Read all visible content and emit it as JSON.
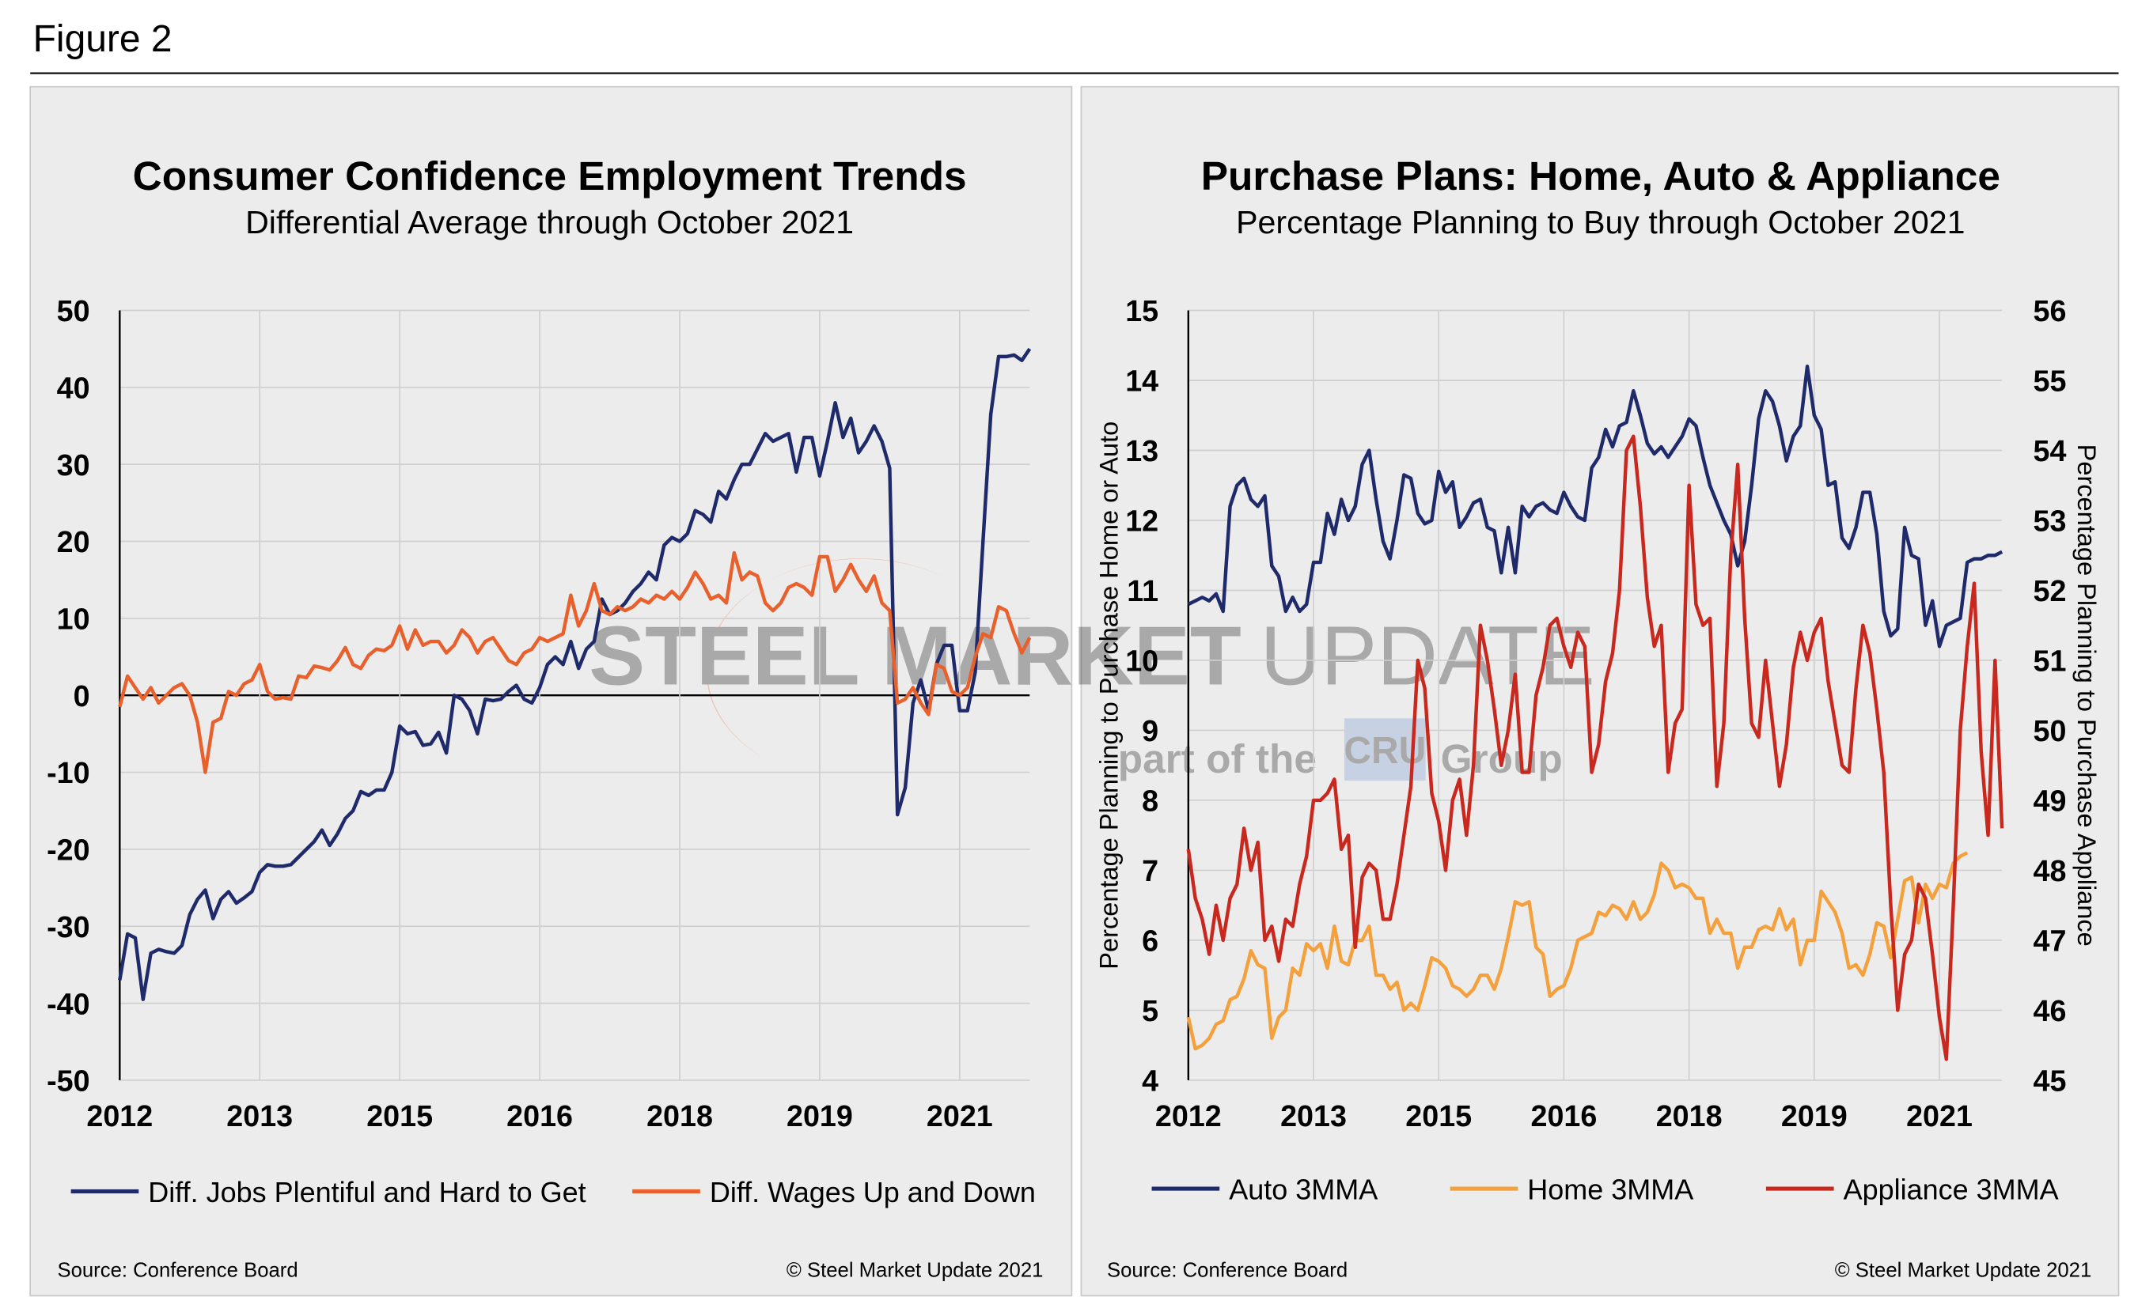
{
  "figure_title": "Figure 2",
  "watermark": {
    "brand": "STEEL MARKET",
    "product": "UPDATE",
    "prefix": "part of the",
    "logo": "CRU",
    "suffix": "Group"
  },
  "chart_data": [
    {
      "type": "line",
      "title": "Consumer Confidence Employment Trends",
      "subtitle": "Differential Average through October 2021",
      "categories": [
        "2012",
        null,
        null,
        null,
        null,
        null,
        null,
        null,
        null,
        null,
        null,
        null,
        null,
        null,
        null,
        null,
        null,
        null,
        "2013",
        null,
        null,
        null,
        null,
        null,
        null,
        null,
        null,
        null,
        null,
        null,
        null,
        null,
        null,
        null,
        null,
        null,
        "2015",
        null,
        null,
        null,
        null,
        null,
        null,
        null,
        null,
        null,
        null,
        null,
        null,
        null,
        null,
        null,
        null,
        null,
        "2016",
        null,
        null,
        null,
        null,
        null,
        null,
        null,
        null,
        null,
        null,
        null,
        null,
        null,
        null,
        null,
        null,
        null,
        "2018",
        null,
        null,
        null,
        null,
        null,
        null,
        null,
        null,
        null,
        null,
        null,
        null,
        null,
        null,
        null,
        null,
        null,
        "2019",
        null,
        null,
        null,
        null,
        null,
        null,
        null,
        null,
        null,
        null,
        null,
        null,
        null,
        null,
        null,
        null,
        null,
        "2021",
        null,
        null,
        null,
        null,
        null,
        null,
        null,
        null,
        null
      ],
      "series": [
        {
          "name": "Diff. Jobs Plentiful and Hard to Get",
          "color": "#1f2a6b",
          "values": [
            -37,
            -31,
            -31.5,
            -39.5,
            -33.5,
            -33,
            -33.3,
            -33.5,
            -32.5,
            -28.5,
            -26.5,
            -25.3,
            -29,
            -26.5,
            -25.5,
            -27,
            -26.3,
            -25.5,
            -23,
            -22,
            -22.2,
            -22.2,
            -22,
            -21,
            -20,
            -19,
            -17.5,
            -19.5,
            -18,
            -16,
            -15,
            -12.5,
            -13,
            -12.3,
            -12.3,
            -10,
            -4,
            -5,
            -4.7,
            -6.5,
            -6.3,
            -4.8,
            -7.5,
            0,
            -0.5,
            -2,
            -5,
            -0.5,
            -0.7,
            -0.5,
            0.5,
            1.3,
            -0.5,
            -1,
            1,
            4,
            5,
            4,
            7,
            3.5,
            6,
            7,
            12.5,
            10.5,
            11,
            12,
            13.5,
            14.5,
            16,
            15,
            19.5,
            20.5,
            20,
            21,
            24,
            23.5,
            22.5,
            26.5,
            25.5,
            28,
            30,
            30,
            32,
            34,
            33,
            33.5,
            34,
            29,
            33.5,
            33.5,
            28.5,
            33,
            38,
            33.5,
            36,
            31.5,
            33,
            35,
            33,
            29.5,
            -15.5,
            -12,
            -1,
            2,
            -2,
            4,
            6.5,
            6.5,
            -2,
            -2,
            3,
            20,
            36.5,
            44,
            44,
            44.2,
            43.5,
            45
          ]
        },
        {
          "name": "Diff. Wages Up and Down",
          "color": "#e8602c",
          "values": [
            -1.5,
            2.5,
            1,
            -0.5,
            1,
            -1,
            0,
            1,
            1.5,
            0,
            -3.5,
            -10,
            -3.5,
            -3,
            0.5,
            0,
            1.5,
            2,
            4,
            0.5,
            -0.5,
            -0.3,
            -0.5,
            2.5,
            2.3,
            3.8,
            3.6,
            3.3,
            4.5,
            6.2,
            4,
            3.5,
            5.2,
            6,
            5.8,
            6.5,
            9,
            6,
            8.5,
            6.5,
            7,
            7,
            5.5,
            6.5,
            8.5,
            7.5,
            5.5,
            7,
            7.5,
            6,
            4.5,
            4,
            5.5,
            6,
            7.5,
            7,
            7.5,
            8,
            13,
            9,
            11,
            14.5,
            11,
            10.5,
            11.5,
            11,
            11.5,
            12.5,
            12,
            13,
            12.5,
            13.5,
            12.5,
            14,
            16,
            14.5,
            12.5,
            13,
            12,
            18.5,
            15,
            16,
            15.5,
            12,
            11,
            12,
            14,
            14.5,
            14,
            13,
            18,
            18,
            13.5,
            15,
            17,
            15,
            13.5,
            15.5,
            12,
            11,
            -1,
            -0.5,
            1,
            -1,
            -2.5,
            4,
            3.5,
            0.5,
            0,
            1,
            5,
            8,
            7.5,
            11.5,
            11,
            8,
            5.5,
            7.5
          ]
        }
      ],
      "ylim": [
        -50,
        50
      ],
      "yticks": [
        -50,
        -40,
        -30,
        -20,
        -10,
        0,
        10,
        20,
        30,
        40,
        50
      ],
      "grid": true,
      "legend": "bottom",
      "source": "Source: Conference Board",
      "copyright": "© Steel Market Update 2021"
    },
    {
      "type": "line",
      "title": "Purchase Plans: Home, Auto & Appliance",
      "subtitle": "Percentage Planning to Buy through October 2021",
      "ylabel": "Percentage Planning to Purchase Home or Auto",
      "y2label": "Percentage Planning to Purchase Appliance",
      "categories": [
        "2012",
        null,
        null,
        null,
        null,
        null,
        null,
        null,
        null,
        null,
        null,
        null,
        null,
        null,
        null,
        null,
        null,
        null,
        "2013",
        null,
        null,
        null,
        null,
        null,
        null,
        null,
        null,
        null,
        null,
        null,
        null,
        null,
        null,
        null,
        null,
        null,
        "2015",
        null,
        null,
        null,
        null,
        null,
        null,
        null,
        null,
        null,
        null,
        null,
        null,
        null,
        null,
        null,
        null,
        null,
        "2016",
        null,
        null,
        null,
        null,
        null,
        null,
        null,
        null,
        null,
        null,
        null,
        null,
        null,
        null,
        null,
        null,
        null,
        "2018",
        null,
        null,
        null,
        null,
        null,
        null,
        null,
        null,
        null,
        null,
        null,
        null,
        null,
        null,
        null,
        null,
        null,
        "2019",
        null,
        null,
        null,
        null,
        null,
        null,
        null,
        null,
        null,
        null,
        null,
        null,
        null,
        null,
        null,
        null,
        null,
        "2021",
        null,
        null,
        null,
        null,
        null,
        null,
        null,
        null,
        null
      ],
      "series": [
        {
          "name": "Auto 3MMA",
          "color": "#1f2a6b",
          "values": [
            10.8,
            10.85,
            10.9,
            10.85,
            10.95,
            10.7,
            12.2,
            12.5,
            12.6,
            12.3,
            12.2,
            12.35,
            11.35,
            11.2,
            10.7,
            10.9,
            10.7,
            10.8,
            11.4,
            11.4,
            12.1,
            11.8,
            12.3,
            12,
            12.2,
            12.8,
            13,
            12.3,
            11.7,
            11.45,
            12,
            12.65,
            12.6,
            12.1,
            11.95,
            12,
            12.7,
            12.4,
            12.55,
            11.9,
            12.05,
            12.25,
            12.3,
            11.9,
            11.85,
            11.25,
            11.9,
            11.25,
            12.2,
            12.05,
            12.2,
            12.25,
            12.15,
            12.1,
            12.4,
            12.2,
            12.05,
            12,
            12.75,
            12.9,
            13.3,
            13.05,
            13.35,
            13.4,
            13.85,
            13.5,
            13.1,
            12.95,
            13.05,
            12.9,
            13.05,
            13.2,
            13.45,
            13.35,
            12.9,
            12.5,
            12.25,
            12,
            11.8,
            11.35,
            11.7,
            12.5,
            13.45,
            13.85,
            13.7,
            13.35,
            12.85,
            13.2,
            13.35,
            14.2,
            13.5,
            13.3,
            12.5,
            12.55,
            11.75,
            11.6,
            11.9,
            12.4,
            12.4,
            11.8,
            10.7,
            10.35,
            10.45,
            11.9,
            11.5,
            11.45,
            10.5,
            10.85,
            10.2,
            10.5,
            10.55,
            10.6,
            11.4,
            11.45,
            11.45,
            11.5,
            11.5,
            11.55
          ]
        },
        {
          "name": "Home 3MMA",
          "color": "#f4a03c",
          "values": [
            4.9,
            4.45,
            4.5,
            4.6,
            4.8,
            4.85,
            5.15,
            5.2,
            5.45,
            5.85,
            5.65,
            5.6,
            4.6,
            4.9,
            5,
            5.6,
            5.5,
            5.95,
            5.85,
            5.95,
            5.6,
            6.2,
            5.7,
            5.65,
            6,
            6,
            6.2,
            5.5,
            5.5,
            5.3,
            5.4,
            5,
            5.1,
            5,
            5.35,
            5.75,
            5.7,
            5.6,
            5.35,
            5.3,
            5.2,
            5.3,
            5.5,
            5.5,
            5.3,
            5.6,
            6.05,
            6.55,
            6.5,
            6.55,
            5.9,
            5.8,
            5.2,
            5.3,
            5.35,
            5.6,
            6,
            6.05,
            6.1,
            6.4,
            6.35,
            6.5,
            6.45,
            6.3,
            6.55,
            6.3,
            6.4,
            6.65,
            7.1,
            7,
            6.75,
            6.8,
            6.75,
            6.6,
            6.6,
            6.1,
            6.3,
            6.1,
            6.1,
            5.6,
            5.9,
            5.9,
            6.15,
            6.2,
            6.15,
            6.45,
            6.15,
            6.3,
            5.65,
            6,
            6,
            6.7,
            6.55,
            6.4,
            6.1,
            5.6,
            5.65,
            5.5,
            5.8,
            6.25,
            6.2,
            5.75,
            6.3,
            6.85,
            6.9,
            6.25,
            6.8,
            6.6,
            6.8,
            6.75,
            7.1,
            7.2,
            7.25,
            null,
            null,
            null,
            null,
            null
          ]
        },
        {
          "name": "Appliance 3MMA",
          "color": "#c8281e",
          "axis": "y2",
          "values": [
            48.3,
            47.6,
            47.3,
            46.8,
            47.5,
            47,
            47.6,
            47.8,
            48.6,
            48,
            48.4,
            47,
            47.2,
            46.7,
            47.3,
            47.2,
            47.8,
            48.2,
            49,
            49,
            49.1,
            49.3,
            48.3,
            48.5,
            46.9,
            47.9,
            48.1,
            48,
            47.3,
            47.3,
            47.8,
            48.5,
            49.2,
            51,
            50.6,
            49.1,
            48.7,
            48,
            49,
            49.3,
            48.5,
            49.5,
            51.5,
            51,
            50.3,
            49.5,
            50,
            50.8,
            49.4,
            49.4,
            50.5,
            50.9,
            51.5,
            51.6,
            51.2,
            50.9,
            51.4,
            51.2,
            49.4,
            49.8,
            50.7,
            51.1,
            52,
            54,
            54.2,
            53.2,
            51.9,
            51.2,
            51.5,
            49.4,
            50.1,
            50.3,
            53.5,
            51.8,
            51.5,
            51.6,
            49.2,
            50.1,
            52.5,
            53.8,
            51.6,
            50.1,
            49.9,
            51,
            50.1,
            49.2,
            49.8,
            50.9,
            51.4,
            51,
            51.4,
            51.6,
            50.7,
            50.1,
            49.5,
            49.4,
            50.6,
            51.5,
            51.1,
            50.3,
            49.4,
            47.5,
            46,
            46.8,
            47,
            47.8,
            47.6,
            46.8,
            45.9,
            45.3,
            47.5,
            50,
            51.2,
            52.1,
            49.7,
            48.5,
            51,
            48.6
          ]
        }
      ],
      "ylim": [
        4,
        15
      ],
      "yticks": [
        4,
        5,
        6,
        7,
        8,
        9,
        10,
        11,
        12,
        13,
        14,
        15
      ],
      "y2lim": [
        45,
        56
      ],
      "y2ticks": [
        45,
        46,
        47,
        48,
        49,
        50,
        51,
        52,
        53,
        54,
        55,
        56
      ],
      "grid": true,
      "legend": "bottom",
      "source": "Source: Conference Board",
      "copyright": "© Steel Market Update 2021"
    }
  ]
}
